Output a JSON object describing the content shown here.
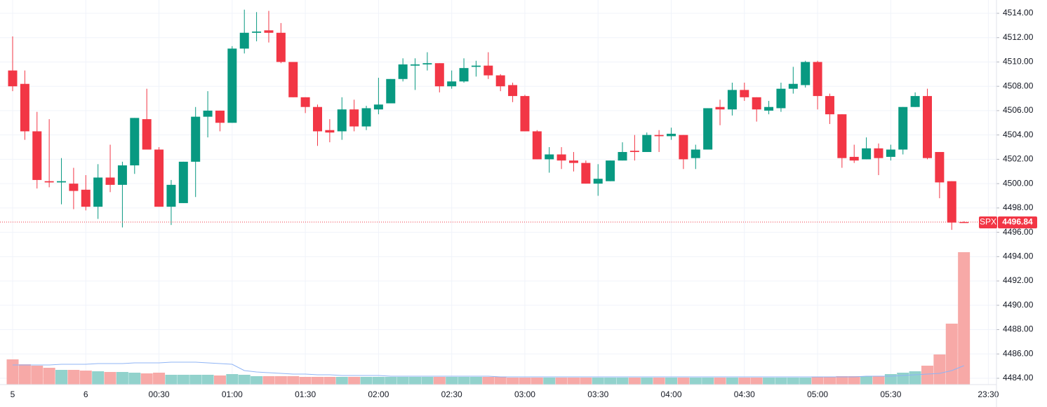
{
  "chart_data": {
    "type": "candlestick",
    "symbol": "SPX",
    "last_price": 4496.84,
    "up_color": "#089981",
    "down_color": "#f23645",
    "volume_up_color": "#92d2cc",
    "volume_down_color": "#f7a9a7",
    "ma_color": "#8fb4f5",
    "grid": true,
    "categories": [
      "5",
      null,
      null,
      null,
      null,
      null,
      "6",
      null,
      null,
      null,
      null,
      null,
      "00:30",
      null,
      null,
      null,
      null,
      null,
      "01:00",
      null,
      null,
      null,
      null,
      null,
      "01:30",
      null,
      null,
      null,
      null,
      null,
      "02:00",
      null,
      null,
      null,
      null,
      null,
      "02:30",
      null,
      null,
      null,
      null,
      null,
      "03:00",
      null,
      null,
      null,
      null,
      null,
      "03:30",
      null,
      null,
      null,
      null,
      null,
      "04:00",
      null,
      null,
      null,
      null,
      null,
      "04:30",
      null,
      null,
      null,
      null,
      null,
      "05:00",
      null,
      null,
      null,
      null,
      null,
      "05:30",
      null,
      null,
      null,
      null,
      null,
      null,
      null,
      "23:30"
    ],
    "open": [
      4509.3,
      4508.2,
      4504.3,
      4500.2,
      4500.1,
      4500.0,
      4499.5,
      4498.1,
      4500.5,
      4499.9,
      4501.5,
      4505.3,
      4502.8,
      4498.1,
      4498.4,
      4501.8,
      4505.5,
      4506.0,
      4505.0,
      4511.1,
      4512.4,
      4512.6,
      4512.4,
      4510.0,
      4507.1,
      4506.3,
      4504.4,
      4504.3,
      4506.1,
      4504.7,
      4506.1,
      4506.6,
      4508.6,
      4509.7,
      4509.8,
      4509.9,
      4508.0,
      4508.4,
      4509.6,
      4509.7,
      4508.9,
      4508.1,
      4507.2,
      4504.3,
      4502.0,
      4502.4,
      4501.9,
      4501.7,
      4500.0,
      4500.2,
      4501.9,
      4502.7,
      4502.6,
      4504.0,
      4503.9,
      4504.0,
      4502.1,
      4502.8,
      4506.3,
      4506.1,
      4507.7,
      4507.1,
      4506.0,
      4506.2,
      4507.8,
      4508.1,
      4510.0,
      4507.2,
      4505.7,
      4502.2,
      4502.0,
      4502.9,
      4502.2,
      4502.8,
      4506.3,
      4507.2,
      4502.6,
      4500.2,
      4496.85,
      null,
      null
    ],
    "high": [
      4512.1,
      4509.3,
      4505.9,
      4505.3,
      4502.1,
      4501.3,
      4500.7,
      4501.6,
      4503.2,
      4501.8,
      4505.4,
      4507.8,
      4503.0,
      4500.3,
      4501.8,
      4506.3,
      4507.6,
      4506.0,
      4511.3,
      4514.3,
      4514.1,
      4514.2,
      4513.2,
      4510.0,
      4507.1,
      4506.5,
      4505.3,
      4507.1,
      4506.9,
      4506.4,
      4508.7,
      4508.6,
      4510.3,
      4510.3,
      4510.8,
      4509.9,
      4509.3,
      4510.3,
      4510.1,
      4510.8,
      4509.0,
      4508.3,
      4507.3,
      4504.4,
      4503.0,
      4503.0,
      4502.6,
      4501.9,
      4501.6,
      4501.9,
      4503.4,
      4504.0,
      4504.2,
      4504.4,
      4504.6,
      4504.0,
      4503.2,
      4506.2,
      4506.9,
      4508.3,
      4508.3,
      4507.1,
      4506.8,
      4508.3,
      4509.6,
      4510.1,
      4510.1,
      4507.4,
      4505.7,
      4503.2,
      4503.8,
      4503.3,
      4503.2,
      4506.3,
      4507.5,
      4507.8,
      4502.6,
      4500.2,
      4496.9,
      null,
      null
    ],
    "low": [
      4507.6,
      4503.6,
      4499.6,
      4499.7,
      4498.3,
      4497.9,
      4497.8,
      4497.1,
      4499.3,
      4496.4,
      4500.8,
      4502.8,
      4498.1,
      4496.6,
      4498.4,
      4498.9,
      4503.8,
      4504.3,
      4505.0,
      4510.7,
      4511.7,
      4511.6,
      4509.9,
      4507.1,
      4505.8,
      4503.1,
      4503.4,
      4503.6,
      4504.3,
      4504.4,
      4505.7,
      4506.6,
      4508.4,
      4507.7,
      4509.3,
      4507.5,
      4507.8,
      4508.3,
      4508.8,
      4508.6,
      4507.6,
      4506.7,
      4504.3,
      4502.0,
      4500.9,
      4501.2,
      4501.0,
      4500.0,
      4499.0,
      4500.2,
      4501.9,
      4501.9,
      4502.6,
      4502.6,
      4503.6,
      4501.2,
      4501.2,
      4502.8,
      4504.8,
      4505.6,
      4506.8,
      4505.1,
      4505.7,
      4505.9,
      4507.4,
      4507.9,
      4506.1,
      4504.9,
      4501.3,
      4501.7,
      4502.0,
      4500.7,
      4501.9,
      4502.4,
      4506.3,
      4502.0,
      4498.8,
      4496.2,
      4496.8,
      null,
      null
    ],
    "close": [
      4508.0,
      4504.3,
      4500.3,
      4500.1,
      4500.2,
      4499.4,
      4498.1,
      4500.5,
      4499.9,
      4501.5,
      4505.4,
      4502.8,
      4498.1,
      4499.9,
      4501.8,
      4505.5,
      4506.0,
      4505.0,
      4511.1,
      4512.4,
      4512.5,
      4512.4,
      4510.0,
      4507.1,
      4506.3,
      4504.3,
      4504.2,
      4506.1,
      4504.7,
      4506.2,
      4506.5,
      4508.6,
      4509.8,
      4509.8,
      4509.9,
      4508.0,
      4508.4,
      4509.5,
      4509.7,
      4508.9,
      4508.0,
      4507.2,
      4504.3,
      4502.0,
      4502.4,
      4501.9,
      4501.7,
      4500.0,
      4500.4,
      4501.9,
      4502.6,
      4502.6,
      4504.0,
      4503.9,
      4504.1,
      4502.0,
      4502.8,
      4506.2,
      4506.1,
      4507.7,
      4507.1,
      4506.1,
      4506.3,
      4507.8,
      4508.2,
      4510.0,
      4507.2,
      4505.7,
      4502.1,
      4501.9,
      4502.9,
      4502.1,
      4502.8,
      4506.3,
      4507.2,
      4502.1,
      4500.1,
      4496.8,
      4496.84,
      null,
      null
    ],
    "volume": [
      36,
      29,
      27,
      24,
      21,
      21,
      20,
      19,
      18,
      18,
      17,
      16,
      17,
      14,
      14,
      14,
      14,
      13,
      15,
      14,
      12,
      12,
      12,
      12,
      11,
      11,
      11,
      11,
      11,
      11,
      11,
      11,
      11,
      11,
      11,
      11,
      11,
      11,
      11,
      11,
      11,
      10,
      10,
      10,
      10,
      10,
      10,
      10,
      10,
      10,
      10,
      10,
      10,
      10,
      10,
      10,
      10,
      10,
      10,
      10,
      10,
      10,
      10,
      10,
      10,
      10,
      11,
      11,
      12,
      12,
      12,
      12,
      15,
      17,
      19,
      27,
      43,
      87,
      189,
      null,
      null
    ],
    "volume_ma": [
      28,
      28,
      28,
      28,
      29,
      29,
      29,
      30,
      30,
      30,
      31,
      31,
      31,
      32,
      32,
      32,
      31,
      30,
      29,
      20,
      18,
      17,
      16,
      15,
      15,
      14,
      14,
      13,
      13,
      13,
      13,
      12,
      12,
      12,
      12,
      12,
      12,
      12,
      12,
      12,
      11,
      11,
      11,
      11,
      11,
      11,
      11,
      11,
      11,
      11,
      11,
      11,
      11,
      11,
      11,
      11,
      11,
      11,
      11,
      11,
      11,
      11,
      11,
      11,
      11,
      11,
      11,
      11,
      11,
      11,
      12,
      12,
      12,
      13,
      14,
      15,
      16,
      20,
      27,
      null,
      null
    ],
    "volume_ylim": [
      0,
      200
    ],
    "ylim": [
      4484,
      4514
    ],
    "yticks": [
      {
        "value": 4484,
        "label": "4484.00"
      },
      {
        "value": 4486,
        "label": "4486.00"
      },
      {
        "value": 4488,
        "label": "4488.00"
      },
      {
        "value": 4490,
        "label": "4490.00"
      },
      {
        "value": 4492,
        "label": "4492.00"
      },
      {
        "value": 4494,
        "label": "4494.00"
      },
      {
        "value": 4496,
        "label": "4496.00"
      },
      {
        "value": 4498,
        "label": "4498.00"
      },
      {
        "value": 4500,
        "label": "4500.00"
      },
      {
        "value": 4502,
        "label": "4502.00"
      },
      {
        "value": 4504,
        "label": "4504.00"
      },
      {
        "value": 4506,
        "label": "4506.00"
      },
      {
        "value": 4508,
        "label": "4508.00"
      },
      {
        "value": 4510,
        "label": "4510.00"
      },
      {
        "value": 4512,
        "label": "4512.00"
      },
      {
        "value": 4514,
        "label": "4514.00"
      }
    ]
  }
}
